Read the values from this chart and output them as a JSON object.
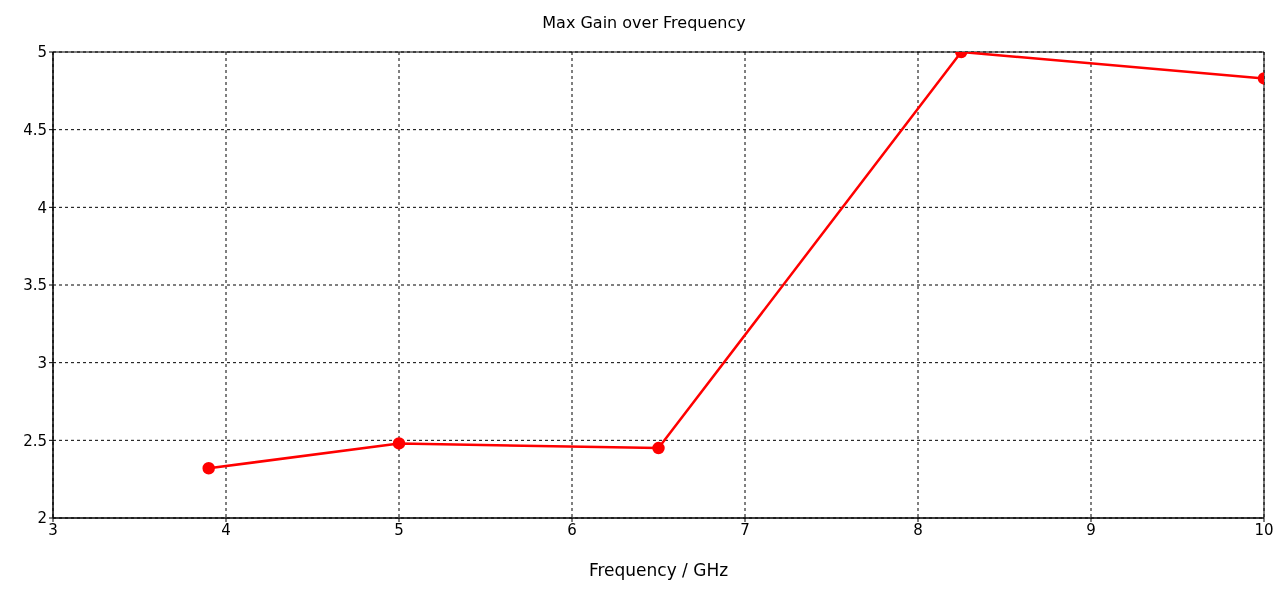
{
  "chart_data": {
    "type": "line",
    "title": "Max Gain over Frequency",
    "xlabel": "Frequency / GHz",
    "x": [
      3.9,
      5,
      6.5,
      8.25,
      10
    ],
    "series": [
      {
        "color": "#ff0000",
        "values": [
          2.32,
          2.48,
          2.45,
          5.0,
          4.83
        ]
      }
    ],
    "xlim": [
      3,
      10
    ],
    "xticks": [
      3,
      4,
      5,
      6,
      7,
      8,
      9,
      10
    ],
    "ylim": [
      2,
      5
    ],
    "yticks": [
      2,
      2.5,
      3,
      3.5,
      4,
      4.5,
      5
    ],
    "grid": true,
    "marker": "circle",
    "line_style": "solid"
  }
}
